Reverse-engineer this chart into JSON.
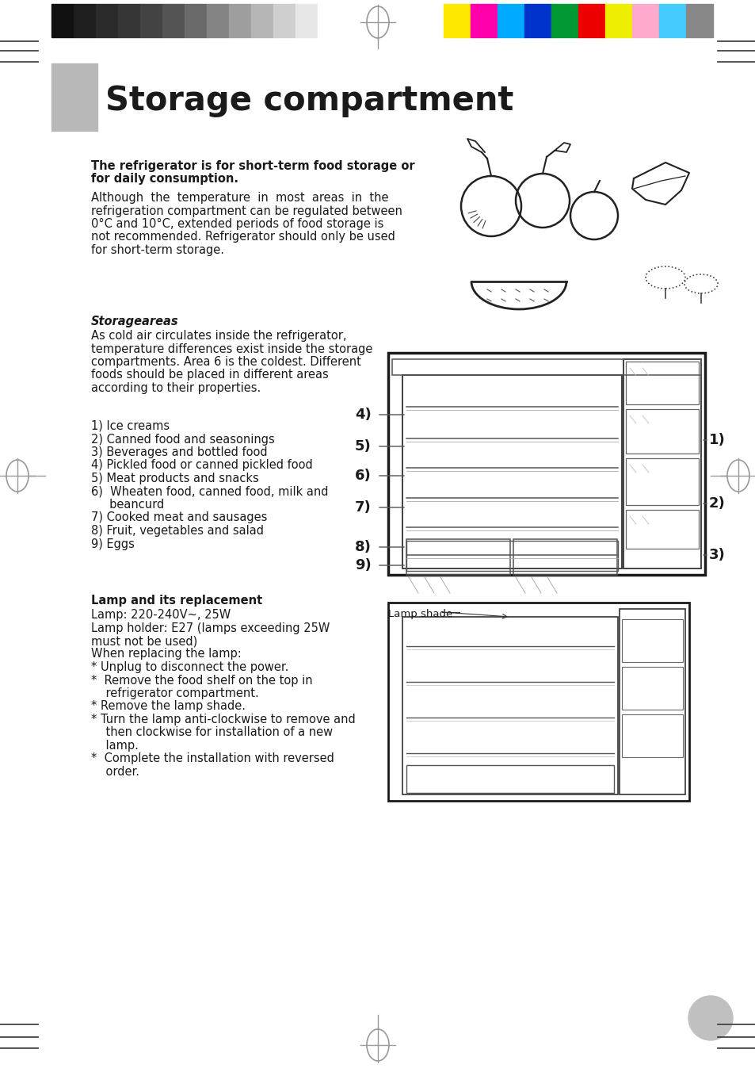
{
  "title": "Storage compartment",
  "title_fontsize": 30,
  "bg_color": "#ffffff",
  "text_color": "#1a1a1a",
  "gray_rect_color": "#b8b8b8",
  "color_bar_left": [
    "#111111",
    "#1e1e1e",
    "#2b2b2b",
    "#363636",
    "#434343",
    "#545454",
    "#6a6a6a",
    "#848484",
    "#9e9e9e",
    "#b6b6b6",
    "#cfcfcf",
    "#e6e6e6",
    "#ffffff"
  ],
  "color_bar_right": [
    "#ffe800",
    "#ff00aa",
    "#00aaff",
    "#0033cc",
    "#009933",
    "#ee0000",
    "#eeee00",
    "#ffaacc",
    "#44ccff",
    "#888888"
  ],
  "bold_intro_line1": "The refrigerator is for short-term food storage or",
  "bold_intro_line2": "for daily consumption.",
  "para1_lines": [
    "Although  the  temperature  in  most  areas  in  the",
    "refrigeration compartment can be regulated between",
    "0°C and 10°C, extended periods of food storage is",
    "not recommended. Refrigerator should only be used",
    "for short-term storage."
  ],
  "storage_areas_heading": "Storageareas",
  "storage_lines": [
    "As cold air circulates inside the refrigerator,",
    "temperature differences exist inside the storage",
    "compartments. Area 6 is the coldest. Different",
    "foods should be placed in different areas",
    "according to their properties."
  ],
  "list_items": [
    "1) Ice creams",
    "2) Canned food and seasonings",
    "3) Beverages and bottled food",
    "4) Pickled food or canned pickled food",
    "5) Meat products and snacks",
    "6)  Wheaten food, canned food, milk and",
    "     beancurd",
    "7) Cooked meat and sausages",
    "8) Fruit, vegetables and salad",
    "9) Eggs"
  ],
  "lamp_heading": "Lamp and its replacement",
  "lamp_lines": [
    "Lamp: 220-240V~, 25W",
    "Lamp holder: E27 (lamps exceeding 25W",
    "must not be used)",
    "When replacing the lamp:",
    "* Unplug to disconnect the power.",
    "*  Remove the food shelf on the top in",
    "    refrigerator compartment.",
    "* Remove the lamp shade.",
    "* Turn the lamp anti-clockwise to remove and",
    "    then clockwise for installation of a new",
    "    lamp.",
    "*  Complete the installation with reversed",
    "    order."
  ],
  "lamp_shade_label": "Lamp shade"
}
